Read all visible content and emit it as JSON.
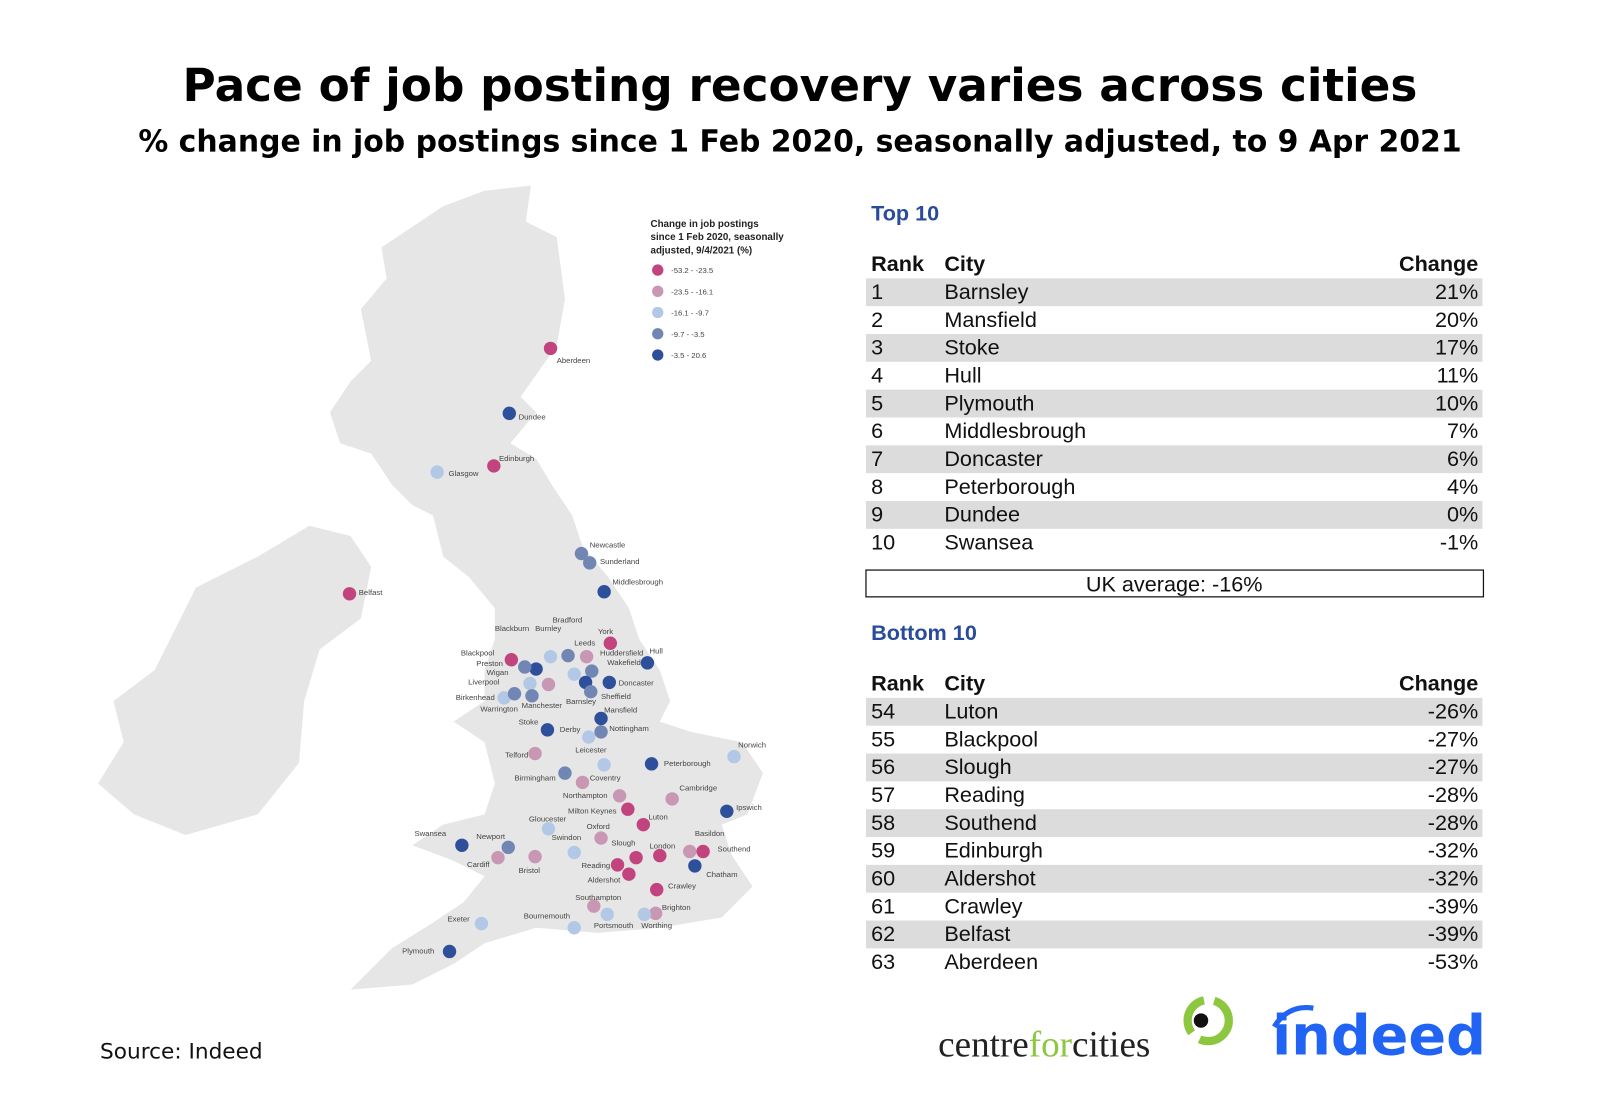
{
  "title": "Pace of job posting recovery varies across cities",
  "subtitle": "% change in job postings since 1 Feb 2020, seasonally adjusted, to 9 Apr 2021",
  "legend": {
    "title_lines": [
      "Change in job postings",
      "since 1 Feb 2020, seasonally",
      "adjusted, 9/4/2021 (%)"
    ],
    "items": [
      {
        "label": "-53.2 - -23.5",
        "color": "#c2447e"
      },
      {
        "label": "-23.5 - -16.1",
        "color": "#c897b3"
      },
      {
        "label": "-16.1 - -9.7",
        "color": "#b3c8e6"
      },
      {
        "label": "-9.7 - -3.5",
        "color": "#7286b3"
      },
      {
        "label": "-3.5 - 20.6",
        "color": "#2e4f9a"
      }
    ]
  },
  "cities": [
    {
      "name": "Aberdeen",
      "color": "#c2447e"
    },
    {
      "name": "Dundee",
      "color": "#2e4f9a"
    },
    {
      "name": "Edinburgh",
      "color": "#c2447e"
    },
    {
      "name": "Glasgow",
      "color": "#b3c8e6"
    },
    {
      "name": "Belfast",
      "color": "#c2447e"
    },
    {
      "name": "Newcastle",
      "color": "#7286b3"
    },
    {
      "name": "Sunderland",
      "color": "#7286b3"
    },
    {
      "name": "Middlesbrough",
      "color": "#2e4f9a"
    },
    {
      "name": "York",
      "color": "#c2447e"
    },
    {
      "name": "Bradford",
      "color": "#7286b3"
    },
    {
      "name": "Blackburn",
      "color": "#2e4f9a"
    },
    {
      "name": "Burnley",
      "color": "#b3c8e6"
    },
    {
      "name": "Leeds",
      "color": "#c897b3"
    },
    {
      "name": "Huddersfield",
      "color": "#b3c8e6"
    },
    {
      "name": "Hull",
      "color": "#2e4f9a"
    },
    {
      "name": "Blackpool",
      "color": "#c2447e"
    },
    {
      "name": "Preston",
      "color": "#7286b3"
    },
    {
      "name": "Wakefield",
      "color": "#7286b3"
    },
    {
      "name": "Wigan",
      "color": "#b3c8e6"
    },
    {
      "name": "Liverpool",
      "color": "#b3c8e6"
    },
    {
      "name": "Doncaster",
      "color": "#2e4f9a"
    },
    {
      "name": "Barnsley",
      "color": "#2e4f9a"
    },
    {
      "name": "Sheffield",
      "color": "#7286b3"
    },
    {
      "name": "Manchester",
      "color": "#7286b3"
    },
    {
      "name": "Birkenhead",
      "color": "#7286b3"
    },
    {
      "name": "Warrington",
      "color": "#c897b3"
    },
    {
      "name": "Mansfield",
      "color": "#2e4f9a"
    },
    {
      "name": "Stoke",
      "color": "#2e4f9a"
    },
    {
      "name": "Derby",
      "color": "#b3c8e6"
    },
    {
      "name": "Nottingham",
      "color": "#7286b3"
    },
    {
      "name": "Telford",
      "color": "#c897b3"
    },
    {
      "name": "Leicester",
      "color": "#b3c8e6"
    },
    {
      "name": "Peterborough",
      "color": "#2e4f9a"
    },
    {
      "name": "Norwich",
      "color": "#b3c8e6"
    },
    {
      "name": "Birmingham",
      "color": "#7286b3"
    },
    {
      "name": "Coventry",
      "color": "#c897b3"
    },
    {
      "name": "Northampton",
      "color": "#c897b3"
    },
    {
      "name": "Cambridge",
      "color": "#c897b3"
    },
    {
      "name": "Ipswich",
      "color": "#2e4f9a"
    },
    {
      "name": "Milton Keynes",
      "color": "#c2447e"
    },
    {
      "name": "Luton",
      "color": "#c2447e"
    },
    {
      "name": "Gloucester",
      "color": "#b3c8e6"
    },
    {
      "name": "Oxford",
      "color": "#c897b3"
    },
    {
      "name": "Basildon",
      "color": "#c897b3"
    },
    {
      "name": "Southend",
      "color": "#c2447e"
    },
    {
      "name": "Swansea",
      "color": "#2e4f9a"
    },
    {
      "name": "Newport",
      "color": "#7286b3"
    },
    {
      "name": "Swindon",
      "color": "#b3c8e6"
    },
    {
      "name": "Slough",
      "color": "#c2447e"
    },
    {
      "name": "London",
      "color": "#c2447e"
    },
    {
      "name": "Cardiff",
      "color": "#c897b3"
    },
    {
      "name": "Bristol",
      "color": "#c897b3"
    },
    {
      "name": "Reading",
      "color": "#c2447e"
    },
    {
      "name": "Aldershot",
      "color": "#c2447e"
    },
    {
      "name": "Chatham",
      "color": "#2e4f9a"
    },
    {
      "name": "Crawley",
      "color": "#c2447e"
    },
    {
      "name": "Southampton",
      "color": "#c897b3"
    },
    {
      "name": "Brighton",
      "color": "#c897b3"
    },
    {
      "name": "Exeter",
      "color": "#b3c8e6"
    },
    {
      "name": "Bournemouth",
      "color": "#b3c8e6"
    },
    {
      "name": "Portsmouth",
      "color": "#b3c8e6"
    },
    {
      "name": "Worthing",
      "color": "#b3c8e6"
    },
    {
      "name": "Plymouth",
      "color": "#2e4f9a"
    }
  ],
  "top": {
    "title": "Top 10",
    "header": [
      "Rank",
      "City",
      "Change"
    ],
    "rows": [
      [
        1,
        "Barnsley",
        "21%"
      ],
      [
        2,
        "Mansfield",
        "20%"
      ],
      [
        3,
        "Stoke",
        "17%"
      ],
      [
        4,
        "Hull",
        "11%"
      ],
      [
        5,
        "Plymouth",
        "10%"
      ],
      [
        6,
        "Middlesbrough",
        "7%"
      ],
      [
        7,
        "Doncaster",
        "6%"
      ],
      [
        8,
        "Peterborough",
        "4%"
      ],
      [
        9,
        "Dundee",
        "0%"
      ],
      [
        10,
        "Swansea",
        "-1%"
      ]
    ]
  },
  "average": "UK average: -16%",
  "bottom": {
    "title": "Bottom 10",
    "header": [
      "Rank",
      "City",
      "Change"
    ],
    "rows": [
      [
        54,
        "Luton",
        "-26%"
      ],
      [
        55,
        "Blackpool",
        "-27%"
      ],
      [
        56,
        "Slough",
        "-27%"
      ],
      [
        57,
        "Reading",
        "-28%"
      ],
      [
        58,
        "Southend",
        "-28%"
      ],
      [
        59,
        "Edinburgh",
        "-32%"
      ],
      [
        60,
        "Aldershot",
        "-32%"
      ],
      [
        61,
        "Crawley",
        "-39%"
      ],
      [
        62,
        "Belfast",
        "-39%"
      ],
      [
        63,
        "Aberdeen",
        "-53%"
      ]
    ]
  },
  "source": "Source: Indeed",
  "logos": {
    "centre": [
      "centre",
      "for",
      "cities"
    ],
    "indeed": "indeed"
  }
}
